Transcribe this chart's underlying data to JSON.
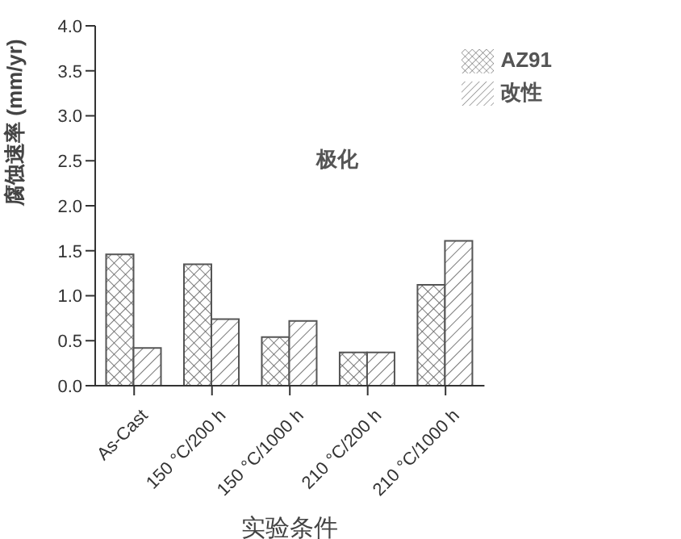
{
  "chart_data": {
    "type": "bar",
    "xlabel": "实验条件",
    "ylabel": "腐蚀速率 (mm/yr)",
    "annotations": [
      "极化"
    ],
    "categories": [
      "As-Cast",
      "150 °C/200 h",
      "150 °C/1000 h",
      "210 °C/200 h",
      "210 °C/1000 h"
    ],
    "series": [
      {
        "name": "AZ91",
        "color": "#555555",
        "values": [
          1.46,
          1.35,
          0.54,
          0.37,
          1.12
        ]
      },
      {
        "name": "改性",
        "color": "#555555",
        "values": [
          0.42,
          0.74,
          0.72,
          0.37,
          1.61
        ]
      }
    ],
    "ylim": [
      0,
      4
    ],
    "yticks": [
      {
        "value": 0,
        "label": "0.0"
      },
      {
        "value": 0.5,
        "label": "0.5"
      },
      {
        "value": 1,
        "label": "1.0"
      },
      {
        "value": 1.5,
        "label": "1.5"
      },
      {
        "value": 2,
        "label": "2.0"
      },
      {
        "value": 2.5,
        "label": "2.5"
      },
      {
        "value": 3,
        "label": "3.0"
      },
      {
        "value": 3.5,
        "label": "3.5"
      },
      {
        "value": 4,
        "label": "4.0"
      }
    ],
    "grid": false,
    "legend": "top right"
  }
}
